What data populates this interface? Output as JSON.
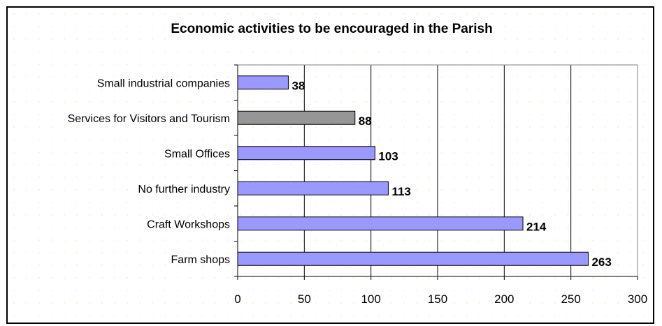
{
  "colors": {
    "bar_default": "#9999ff",
    "bar_highlight": "#969696",
    "gridline": "#000000",
    "text": "#000000"
  },
  "chart_data": {
    "type": "bar",
    "orientation": "horizontal",
    "title": "Economic activities to be encouraged in the Parish",
    "categories": [
      "Small industrial companies",
      "Services for Visitors and Tourism",
      "Small Offices",
      "No further industry",
      "Craft Workshops",
      "Farm shops"
    ],
    "values": [
      38,
      88,
      103,
      113,
      214,
      263
    ],
    "highlight_index": 1,
    "xlim": [
      0,
      300
    ],
    "xticks": [
      0,
      50,
      100,
      150,
      200,
      250,
      300
    ],
    "grid": true,
    "legend": false,
    "xlabel": "",
    "ylabel": ""
  }
}
